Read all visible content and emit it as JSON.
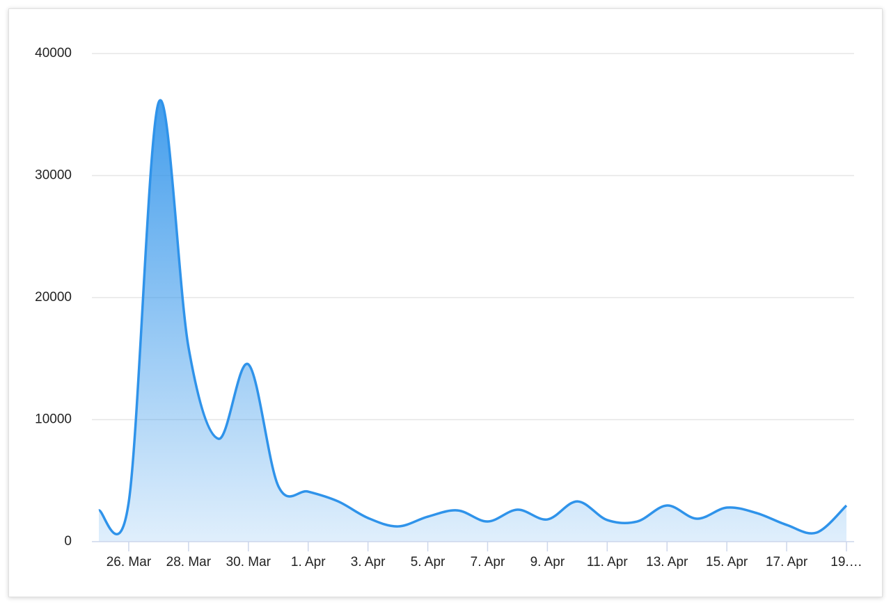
{
  "chart_data": {
    "type": "area",
    "categories": [
      null,
      "26. Mar",
      null,
      "28. Mar",
      null,
      "30. Mar",
      null,
      "1. Apr",
      null,
      "3. Apr",
      null,
      "5. Apr",
      null,
      "7. Apr",
      null,
      "9. Apr",
      null,
      "11. Apr",
      null,
      "13. Apr",
      null,
      "15. Apr",
      null,
      "17. Apr",
      null,
      "19.…"
    ],
    "values": [
      2560,
      3250,
      36000,
      15900,
      8430,
      14530,
      4560,
      4100,
      3300,
      1940,
      1250,
      2050,
      2560,
      1650,
      2620,
      1820,
      3300,
      1770,
      1650,
      2960,
      1880,
      2790,
      2340,
      1370,
      740,
      2960
    ],
    "color": "#2f93ea",
    "ylim": [
      0,
      40000
    ],
    "yticks": [
      0,
      10000,
      20000,
      30000,
      40000
    ],
    "grid": true
  }
}
